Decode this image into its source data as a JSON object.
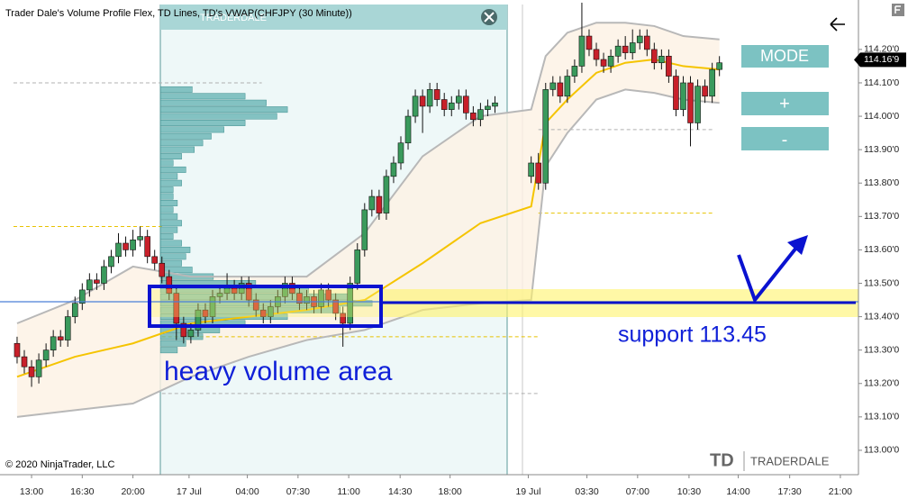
{
  "chart_data": {
    "type": "candlestick",
    "title": "Trader Dale's Volume Profile Flex, TD Lines, TD's VWAP(CHFJPY (30 Minute))",
    "copyright": "© 2020 NinjaTrader, LLC",
    "watermark": "TRADERDALE",
    "logo": {
      "mark": "TD",
      "name": "TRADERDALE"
    },
    "buttons": [
      "MODE",
      "+",
      "-"
    ],
    "annotations": {
      "box_label": "heavy volume area",
      "line_label": "support 113.45"
    },
    "last_price": {
      "value": 114.169,
      "label": "114.16'9"
    },
    "xlim": [
      -2.36,
      116.2
    ],
    "ylim": [
      112.927,
      114.348
    ],
    "xticks": [
      {
        "value": 2,
        "label": "13:00"
      },
      {
        "value": 9,
        "label": "16:30"
      },
      {
        "value": 16,
        "label": "20:00"
      },
      {
        "value": 23.75,
        "label": "17 Jul"
      },
      {
        "value": 31.8,
        "label": "04:00"
      },
      {
        "value": 38.8,
        "label": "07:30"
      },
      {
        "value": 45.8,
        "label": "11:00"
      },
      {
        "value": 52.9,
        "label": "14:30"
      },
      {
        "value": 59.8,
        "label": "18:00"
      },
      {
        "value": 70.6,
        "label": "19 Jul"
      },
      {
        "value": 78.7,
        "label": "03:30"
      },
      {
        "value": 85.7,
        "label": "07:00"
      },
      {
        "value": 92.8,
        "label": "10:30"
      },
      {
        "value": 99.6,
        "label": "14:00"
      },
      {
        "value": 106.7,
        "label": "17:30"
      },
      {
        "value": 113.7,
        "label": "21:00"
      }
    ],
    "yticks": [
      {
        "value": 113.0,
        "label": "113.00'0"
      },
      {
        "value": 113.1,
        "label": "113.10'0"
      },
      {
        "value": 113.2,
        "label": "113.20'0"
      },
      {
        "value": 113.3,
        "label": "113.30'0"
      },
      {
        "value": 113.4,
        "label": "113.40'0"
      },
      {
        "value": 113.5,
        "label": "113.50'0"
      },
      {
        "value": 113.6,
        "label": "113.60'0"
      },
      {
        "value": 113.7,
        "label": "113.70'0"
      },
      {
        "value": 113.8,
        "label": "113.80'0"
      },
      {
        "value": 113.9,
        "label": "113.90'0"
      },
      {
        "value": 114.0,
        "label": "114.00'0"
      },
      {
        "value": 114.1,
        "label": "114.10'0"
      },
      {
        "value": 114.2,
        "label": "114.20'0"
      }
    ],
    "up_color": "#3a9a5c",
    "down_color": "#c8202a",
    "series": {
      "open": [
        113.32,
        113.28,
        113.25,
        113.22,
        113.27,
        113.3,
        113.34,
        113.33,
        113.4,
        113.44,
        113.48,
        113.51,
        113.5,
        113.55,
        113.58,
        113.62,
        113.6,
        113.63,
        113.64,
        113.58,
        113.56,
        113.52,
        113.47,
        113.38,
        113.34,
        113.36,
        113.42,
        113.4,
        113.46,
        113.47,
        113.49,
        113.47,
        113.5,
        113.45,
        113.42,
        113.4,
        113.43,
        113.46,
        113.5,
        113.47,
        113.44,
        113.46,
        113.43,
        113.48,
        113.45,
        113.41,
        113.38,
        113.5,
        113.6,
        113.72,
        113.76,
        113.71,
        113.82,
        113.86,
        113.92,
        114.0,
        114.06,
        114.03,
        114.08,
        114.05,
        114.02,
        114.04,
        114.06,
        114.01,
        113.99,
        114.02,
        114.03,
        null,
        null,
        null,
        null,
        113.82,
        113.86,
        113.8,
        114.08,
        114.1,
        114.06,
        114.12,
        114.15,
        114.24,
        114.2,
        114.17,
        114.15,
        114.18,
        114.21,
        114.19,
        114.22,
        114.24,
        114.2,
        114.16,
        114.18,
        114.12,
        114.02,
        114.1,
        113.98,
        114.09,
        114.06,
        114.14
      ],
      "high": [
        113.34,
        113.3,
        113.27,
        113.29,
        113.32,
        113.36,
        113.36,
        113.42,
        113.46,
        113.5,
        113.53,
        113.53,
        113.57,
        113.6,
        113.65,
        113.64,
        113.66,
        113.67,
        113.66,
        113.6,
        113.58,
        113.54,
        113.49,
        113.4,
        113.38,
        113.44,
        113.44,
        113.48,
        113.49,
        113.53,
        113.51,
        113.52,
        113.52,
        113.47,
        113.44,
        113.45,
        113.48,
        113.52,
        113.52,
        113.49,
        113.48,
        113.48,
        113.5,
        113.5,
        113.47,
        113.43,
        113.52,
        113.62,
        113.74,
        113.78,
        113.78,
        113.84,
        113.88,
        113.94,
        114.02,
        114.08,
        114.08,
        114.1,
        114.1,
        114.07,
        114.06,
        114.08,
        114.08,
        114.03,
        114.04,
        114.05,
        114.06,
        null,
        null,
        null,
        null,
        113.88,
        113.89,
        114.1,
        114.12,
        114.12,
        114.14,
        114.17,
        114.34,
        114.26,
        114.22,
        114.19,
        114.2,
        114.23,
        114.24,
        114.26,
        114.26,
        114.26,
        114.22,
        114.2,
        114.2,
        114.14,
        114.12,
        114.12,
        114.11,
        114.11,
        114.16,
        114.18
      ],
      "low": [
        113.26,
        113.23,
        113.19,
        113.2,
        113.25,
        113.28,
        113.31,
        113.31,
        113.38,
        113.42,
        113.46,
        113.48,
        113.48,
        113.53,
        113.56,
        113.58,
        113.58,
        113.61,
        113.56,
        113.54,
        113.5,
        113.45,
        113.33,
        113.32,
        113.32,
        113.34,
        113.38,
        113.38,
        113.44,
        113.45,
        113.45,
        113.45,
        113.43,
        113.4,
        113.38,
        113.38,
        113.41,
        113.44,
        113.45,
        113.42,
        113.42,
        113.41,
        113.41,
        113.43,
        113.39,
        113.31,
        113.36,
        113.48,
        113.58,
        113.7,
        113.69,
        113.69,
        113.8,
        113.84,
        113.9,
        113.98,
        113.95,
        114.01,
        114.03,
        114.0,
        114.0,
        114.02,
        113.99,
        113.97,
        113.97,
        114.0,
        114.01,
        null,
        null,
        null,
        null,
        113.8,
        113.78,
        113.78,
        114.06,
        114.04,
        114.04,
        114.1,
        114.13,
        114.18,
        114.15,
        114.13,
        114.13,
        114.16,
        114.17,
        114.17,
        114.2,
        114.18,
        114.14,
        114.14,
        114.1,
        114.0,
        114.0,
        113.91,
        113.96,
        114.04,
        114.04,
        114.12
      ],
      "close": [
        113.28,
        113.25,
        113.22,
        113.27,
        113.3,
        113.34,
        113.33,
        113.4,
        113.44,
        113.48,
        113.51,
        113.5,
        113.55,
        113.58,
        113.62,
        113.6,
        113.63,
        113.64,
        113.58,
        113.56,
        113.52,
        113.47,
        113.38,
        113.34,
        113.36,
        113.42,
        113.4,
        113.46,
        113.47,
        113.49,
        113.47,
        113.5,
        113.45,
        113.42,
        113.4,
        113.43,
        113.46,
        113.5,
        113.47,
        113.44,
        113.46,
        113.43,
        113.48,
        113.45,
        113.41,
        113.38,
        113.5,
        113.6,
        113.72,
        113.76,
        113.71,
        113.82,
        113.86,
        113.92,
        114.0,
        114.06,
        114.03,
        114.08,
        114.05,
        114.02,
        114.04,
        114.06,
        114.01,
        113.99,
        114.02,
        114.03,
        114.04,
        null,
        null,
        null,
        null,
        113.86,
        113.8,
        114.08,
        114.1,
        114.06,
        114.12,
        114.15,
        114.24,
        114.2,
        114.17,
        114.15,
        114.18,
        114.21,
        114.19,
        114.22,
        114.24,
        114.2,
        114.16,
        114.18,
        114.12,
        114.02,
        114.1,
        113.98,
        114.09,
        114.06,
        114.14,
        114.16
      ]
    },
    "vwap": {
      "color": "#f5c400",
      "x": [
        0,
        8,
        16,
        24,
        32,
        40,
        48,
        56,
        64,
        71,
        73,
        76,
        80,
        84,
        88,
        92,
        97
      ],
      "values": [
        113.22,
        113.28,
        113.32,
        113.38,
        113.4,
        113.42,
        113.45,
        113.56,
        113.68,
        113.73,
        113.98,
        114.05,
        114.13,
        114.16,
        114.17,
        114.15,
        114.14
      ]
    },
    "upper_band": {
      "color": "#b8b8b8",
      "x": [
        0,
        8,
        16,
        24,
        32,
        40,
        48,
        56,
        64,
        71,
        73,
        76,
        80,
        84,
        88,
        92,
        97
      ],
      "values": [
        113.38,
        113.45,
        113.55,
        113.52,
        113.52,
        113.52,
        113.65,
        113.88,
        114.0,
        114.02,
        114.18,
        114.25,
        114.28,
        114.28,
        114.27,
        114.24,
        114.23
      ]
    },
    "lower_band": {
      "color": "#b8b8b8",
      "x": [
        0,
        8,
        16,
        24,
        32,
        40,
        48,
        56,
        64,
        71,
        73,
        76,
        80,
        84,
        88,
        92,
        97
      ],
      "values": [
        113.1,
        113.12,
        113.14,
        113.22,
        113.28,
        113.33,
        113.36,
        113.42,
        113.44,
        113.45,
        113.85,
        113.95,
        114.05,
        114.08,
        114.07,
        114.05,
        114.04
      ]
    },
    "volume_profile": {
      "color": "#5fb0b0",
      "start": 19.8,
      "prices": [
        113.3,
        113.32,
        113.34,
        113.36,
        113.38,
        113.4,
        113.42,
        113.44,
        113.46,
        113.48,
        113.5,
        113.52,
        113.54,
        113.56,
        113.58,
        113.6,
        113.62,
        113.64,
        113.66,
        113.68,
        113.7,
        113.72,
        113.74,
        113.76,
        113.78,
        113.8,
        113.82,
        113.84,
        113.86,
        113.88,
        113.9,
        113.92,
        113.94,
        113.96,
        113.98,
        114.0,
        114.02,
        114.04,
        114.06,
        114.08
      ],
      "volumes": [
        8,
        12,
        20,
        28,
        40,
        60,
        85,
        100,
        90,
        70,
        45,
        25,
        15,
        10,
        12,
        14,
        10,
        6,
        8,
        10,
        8,
        6,
        8,
        6,
        6,
        10,
        8,
        12,
        6,
        10,
        16,
        20,
        24,
        30,
        40,
        55,
        60,
        50,
        40,
        15
      ]
    },
    "levels": [
      {
        "value": 114.1,
        "color": "#b0b0b0",
        "x_range": [
          -0.5,
          33.8
        ]
      },
      {
        "value": 113.67,
        "color": "#e8c200",
        "x_range": [
          -0.5,
          20
        ]
      },
      {
        "value": 113.34,
        "color": "#e8c200",
        "x_range": [
          20,
          72
        ]
      },
      {
        "value": 113.17,
        "color": "#b0b0b0",
        "x_range": [
          20,
          72
        ]
      },
      {
        "value": 113.96,
        "color": "#b0b0b0",
        "x_range": [
          72,
          96
        ]
      },
      {
        "value": 113.71,
        "color": "#e8c200",
        "x_range": [
          72,
          96
        ]
      }
    ]
  }
}
